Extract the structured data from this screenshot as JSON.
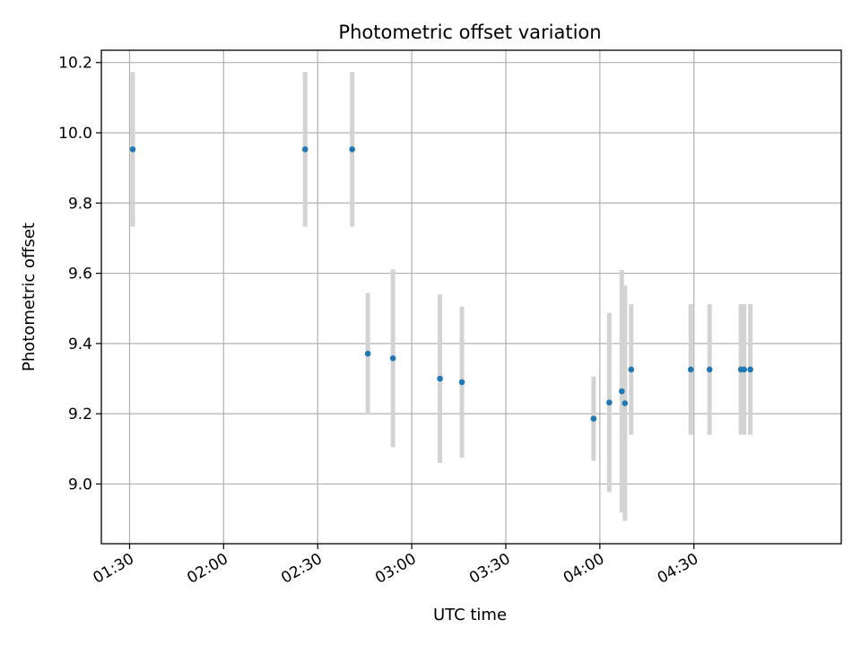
{
  "chart_data": {
    "type": "scatter",
    "title": "Photometric offset variation",
    "xlabel": "UTC time",
    "ylabel": "Photometric offset",
    "x_ticks": [
      "01:30",
      "02:00",
      "02:30",
      "03:00",
      "03:30",
      "04:00",
      "04:30"
    ],
    "x_tick_values": [
      "01:30",
      "02:00",
      "02:30",
      "03:00",
      "03:30",
      "04:00",
      "04:30"
    ],
    "y_ticks": [
      9.0,
      9.2,
      9.4,
      9.6,
      9.8,
      10.0,
      10.2
    ],
    "y_tick_labels": [
      "9.0",
      "9.2",
      "9.4",
      "9.6",
      "9.8",
      "10.0",
      "10.2"
    ],
    "xlim": [
      "01:21",
      "05:17"
    ],
    "ylim": [
      8.83,
      10.235
    ],
    "grid": true,
    "colors": {
      "point": "#1f77b4",
      "errorbar": "#d3d3d3",
      "grid": "#b0b0b0"
    },
    "points": [
      {
        "t": "01:31",
        "y": 9.953,
        "err": 0.22
      },
      {
        "t": "02:26",
        "y": 9.953,
        "err": 0.22
      },
      {
        "t": "02:41",
        "y": 9.953,
        "err": 0.22
      },
      {
        "t": "02:46",
        "y": 9.371,
        "err": 0.173
      },
      {
        "t": "02:54",
        "y": 9.358,
        "err": 0.253
      },
      {
        "t": "03:09",
        "y": 9.3,
        "err": 0.24
      },
      {
        "t": "03:16",
        "y": 9.29,
        "err": 0.215
      },
      {
        "t": "03:58",
        "y": 9.186,
        "err": 0.12
      },
      {
        "t": "04:03",
        "y": 9.232,
        "err": 0.255
      },
      {
        "t": "04:07",
        "y": 9.264,
        "err": 0.345
      },
      {
        "t": "04:08",
        "y": 9.23,
        "err": 0.335
      },
      {
        "t": "04:10",
        "y": 9.326,
        "err": 0.186
      },
      {
        "t": "04:29",
        "y": 9.326,
        "err": 0.186
      },
      {
        "t": "04:35",
        "y": 9.326,
        "err": 0.186
      },
      {
        "t": "04:45",
        "y": 9.326,
        "err": 0.186
      },
      {
        "t": "04:46",
        "y": 9.326,
        "err": 0.186
      },
      {
        "t": "04:48",
        "y": 9.326,
        "err": 0.186
      }
    ]
  }
}
